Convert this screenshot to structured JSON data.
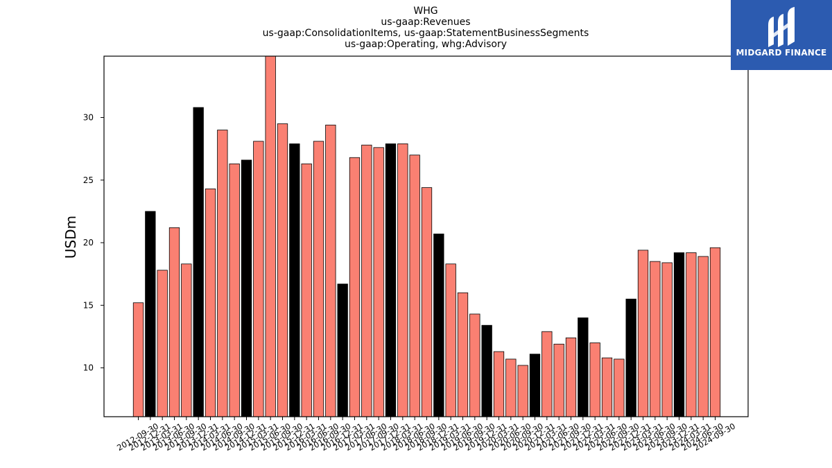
{
  "brand": {
    "name": "MIDGARD FINANCE",
    "bg_color": "#2c5bb0",
    "icon": "midgard-logo-icon"
  },
  "chart_data": {
    "type": "bar",
    "title_lines": [
      "WHG",
      "us-gaap:Revenues",
      "us-gaap:ConsolidationItems, us-gaap:StatementBusinessSegments",
      "us-gaap:Operating, whg:Advisory"
    ],
    "xlabel": "",
    "ylabel": "USDm",
    "ylim": [
      6.1,
      34.9
    ],
    "yticks": [
      10,
      15,
      20,
      25,
      30
    ],
    "colors": {
      "quarter": "#fa8072",
      "fiscal_year_end": "#000000"
    },
    "categories": [
      "2012-09-30",
      "2012-12-31",
      "2013-03-31",
      "2013-06-30",
      "2013-09-30",
      "2013-12-31",
      "2014-03-31",
      "2014-06-30",
      "2014-09-30",
      "2014-12-31",
      "2015-03-31",
      "2015-06-30",
      "2015-09-30",
      "2015-12-31",
      "2016-03-31",
      "2016-06-30",
      "2016-09-30",
      "2016-12-31",
      "2017-03-31",
      "2017-06-30",
      "2017-09-30",
      "2017-12-31",
      "2018-03-31",
      "2018-06-30",
      "2018-09-30",
      "2018-12-31",
      "2019-03-31",
      "2019-06-30",
      "2019-09-30",
      "2019-12-31",
      "2020-03-31",
      "2020-06-30",
      "2020-09-30",
      "2020-12-31",
      "2021-03-31",
      "2021-06-30",
      "2021-09-30",
      "2021-12-31",
      "2022-03-31",
      "2022-06-30",
      "2022-09-30",
      "2022-12-31",
      "2023-03-31",
      "2023-06-30",
      "2023-09-30",
      "2023-12-31",
      "2024-03-31",
      "2024-06-30",
      "2024-09-30"
    ],
    "values": [
      15.2,
      22.5,
      17.8,
      21.2,
      18.3,
      30.8,
      24.3,
      29.0,
      26.3,
      26.6,
      28.1,
      34.9,
      29.5,
      27.9,
      26.3,
      28.1,
      29.4,
      16.7,
      26.8,
      27.8,
      27.6,
      27.9,
      27.9,
      27.0,
      24.4,
      20.7,
      18.3,
      16.0,
      14.3,
      13.4,
      11.3,
      10.7,
      10.2,
      11.1,
      12.9,
      11.9,
      12.4,
      14.0,
      12.0,
      10.8,
      10.7,
      15.5,
      19.4,
      18.5,
      18.4,
      19.2,
      19.2,
      18.9,
      19.6
    ],
    "fiscal_year_end": [
      false,
      true,
      false,
      false,
      false,
      true,
      false,
      false,
      false,
      true,
      false,
      false,
      false,
      true,
      false,
      false,
      false,
      true,
      false,
      false,
      false,
      true,
      false,
      false,
      false,
      true,
      false,
      false,
      false,
      true,
      false,
      false,
      false,
      true,
      false,
      false,
      false,
      true,
      false,
      false,
      false,
      true,
      false,
      false,
      false,
      true,
      false,
      false,
      false
    ],
    "grid": false,
    "legend": "none"
  }
}
